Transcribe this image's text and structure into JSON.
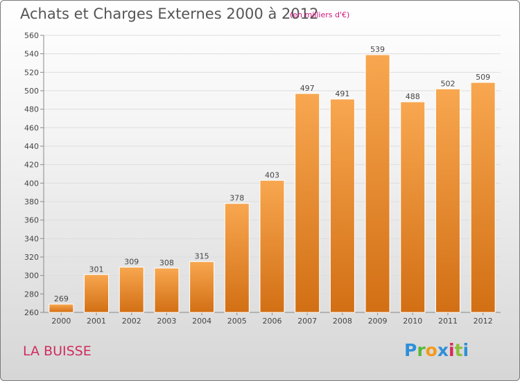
{
  "header": {
    "title": "Achats et Charges Externes 2000 à 2012",
    "subtitle": "(en milliers d'€)"
  },
  "commune": "LA BUISSE",
  "logo": {
    "letters": [
      "P",
      "r",
      "o",
      "x",
      "i",
      "t",
      "i"
    ]
  },
  "colors": {
    "bar_top": "#f8a750",
    "bar_bottom": "#d26f14",
    "grid": "#dddddd",
    "title": "#555555",
    "subtitle": "#d1147d",
    "commune": "#cf2c5f"
  },
  "chart_data": {
    "type": "bar",
    "title": "Achats et Charges Externes 2000 à 2012",
    "categories": [
      "2000",
      "2001",
      "2002",
      "2003",
      "2004",
      "2005",
      "2006",
      "2007",
      "2008",
      "2009",
      "2010",
      "2011",
      "2012"
    ],
    "values": [
      269,
      301,
      309,
      308,
      315,
      378,
      403,
      497,
      491,
      539,
      488,
      502,
      509
    ],
    "ylim": [
      260,
      560
    ],
    "yticks": [
      260,
      280,
      300,
      320,
      340,
      360,
      380,
      400,
      420,
      440,
      460,
      480,
      500,
      520,
      540,
      560
    ],
    "grid": true,
    "xlabel": "",
    "ylabel": ""
  }
}
